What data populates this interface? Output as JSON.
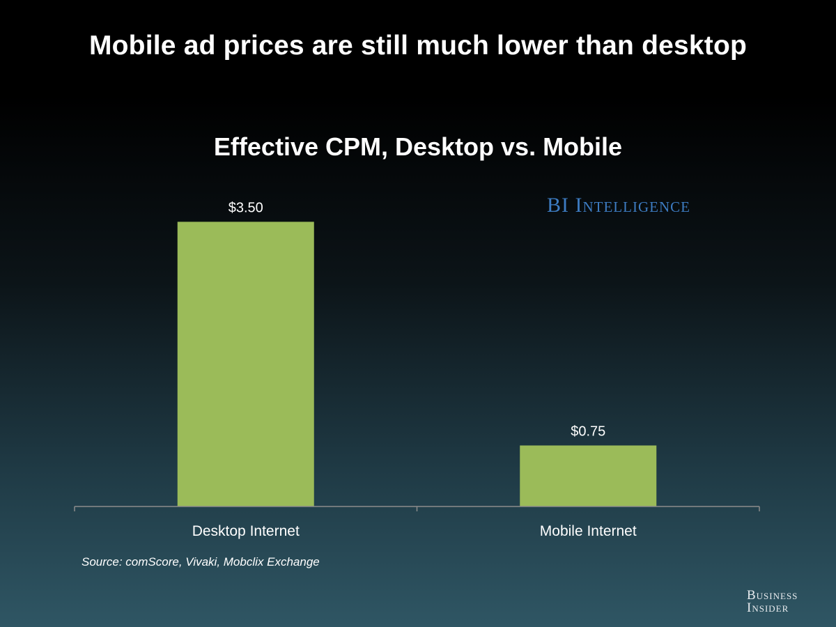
{
  "headline": "Mobile ad prices are still much lower than desktop",
  "watermark": "BI Intelligence",
  "source": "Source: comScore, Vivaki, Mobclix Exchange",
  "brand": {
    "line1": "Business",
    "line2": "Insider"
  },
  "colors": {
    "bar": "#9bbb59",
    "axis": "#8c8c8c",
    "watermark": "#3d7cc2"
  },
  "chart_data": {
    "type": "bar",
    "title": "Effective CPM, Desktop vs. Mobile",
    "categories": [
      "Desktop Internet",
      "Mobile Internet"
    ],
    "values": [
      3.5,
      0.75
    ],
    "value_labels": [
      "$3.50",
      "$0.75"
    ],
    "xlabel": "",
    "ylabel": "",
    "ylim": [
      0,
      4
    ],
    "grid": false,
    "legend": "none"
  }
}
